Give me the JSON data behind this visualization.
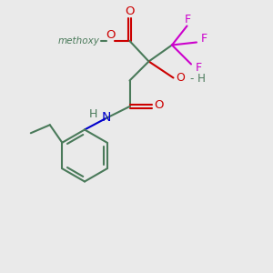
{
  "bg_color": "#eaeaea",
  "bond_color": "#4a7a5a",
  "o_color": "#cc0000",
  "n_color": "#0000cc",
  "f_color": "#cc00cc",
  "lw": 1.5,
  "ring_r": 0.95,
  "figsize": [
    3.0,
    3.0
  ],
  "dpi": 100,
  "xlim": [
    0,
    10
  ],
  "ylim": [
    0,
    10
  ],
  "methoxy_label": "methoxy",
  "O_label": "O",
  "F_label": "F",
  "N_label": "N",
  "H_label": "H",
  "OH_label": "O",
  "dash_label": "- H"
}
